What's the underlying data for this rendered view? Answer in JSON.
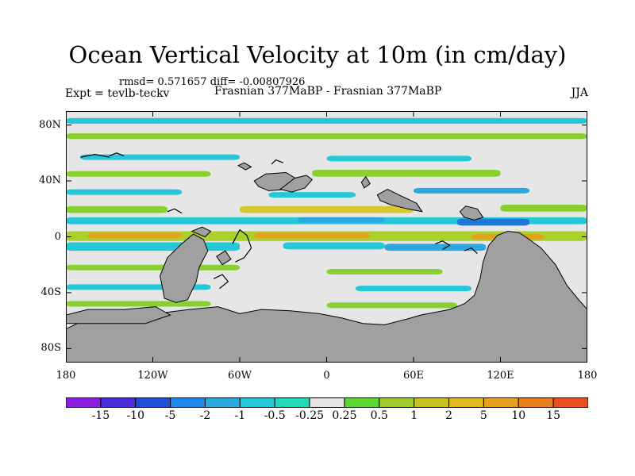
{
  "title": "Ocean Vertical Velocity at 10m (in cm/day)",
  "stats_line": "rmsd= 0.571657 diff= -0.00807926",
  "left_subtitle": "Expt = tevlb-teckv",
  "center_subtitle": "Frasnian 377MaBP - Frasnian 377MaBP",
  "right_subtitle": "JJA",
  "map": {
    "projection": "cylindrical equidistant",
    "lon_range": [
      -180,
      180
    ],
    "lat_range": [
      -90,
      90
    ],
    "lat_ticks": [
      {
        "value": 80,
        "label": "80N"
      },
      {
        "value": 40,
        "label": "40N"
      },
      {
        "value": 0,
        "label": "0"
      },
      {
        "value": -40,
        "label": "40S"
      },
      {
        "value": -80,
        "label": "80S"
      }
    ],
    "lon_ticks": [
      {
        "value": -180,
        "label": "180"
      },
      {
        "value": -120,
        "label": "120W"
      },
      {
        "value": -60,
        "label": "60W"
      },
      {
        "value": 0,
        "label": "0"
      },
      {
        "value": 60,
        "label": "60E"
      },
      {
        "value": 120,
        "label": "120E"
      },
      {
        "value": 180,
        "label": "180"
      }
    ],
    "ocean_background_color": "#e6e6e6",
    "land_color": "#a0a0a0",
    "field_bands": [
      {
        "lon": [
          -180,
          180
        ],
        "lat": [
          -3,
          4
        ],
        "color": "#aad02a"
      },
      {
        "lon": [
          -165,
          -100
        ],
        "lat": [
          -1,
          3
        ],
        "color": "#e8a020"
      },
      {
        "lon": [
          -50,
          30
        ],
        "lat": [
          -1,
          3
        ],
        "color": "#e8a020"
      },
      {
        "lon": [
          100,
          150
        ],
        "lat": [
          -2,
          2
        ],
        "color": "#e8a020"
      },
      {
        "lon": [
          -180,
          -60
        ],
        "lat": [
          -10,
          -4
        ],
        "color": "#26c8d8"
      },
      {
        "lon": [
          -30,
          40
        ],
        "lat": [
          -9,
          -4
        ],
        "color": "#26c8d8"
      },
      {
        "lon": [
          40,
          110
        ],
        "lat": [
          -10,
          -5
        ],
        "color": "#2aa8e0"
      },
      {
        "lon": [
          -180,
          180
        ],
        "lat": [
          9,
          14
        ],
        "color": "#26c8d8"
      },
      {
        "lon": [
          -20,
          40
        ],
        "lat": [
          10,
          14
        ],
        "color": "#2aa8e0"
      },
      {
        "lon": [
          90,
          140
        ],
        "lat": [
          8,
          13
        ],
        "color": "#1e78d8"
      },
      {
        "lon": [
          -180,
          -110
        ],
        "lat": [
          17,
          22
        ],
        "color": "#88d030"
      },
      {
        "lon": [
          -60,
          60
        ],
        "lat": [
          17,
          22
        ],
        "color": "#d8c830"
      },
      {
        "lon": [
          120,
          180
        ],
        "lat": [
          18,
          23
        ],
        "color": "#88d030"
      },
      {
        "lon": [
          -180,
          -100
        ],
        "lat": [
          30,
          34
        ],
        "color": "#26c8d8"
      },
      {
        "lon": [
          -40,
          20
        ],
        "lat": [
          28,
          32
        ],
        "color": "#26c8d8"
      },
      {
        "lon": [
          60,
          140
        ],
        "lat": [
          31,
          35
        ],
        "color": "#2aa8e0"
      },
      {
        "lon": [
          -180,
          -80
        ],
        "lat": [
          43,
          47
        ],
        "color": "#88d030"
      },
      {
        "lon": [
          -10,
          120
        ],
        "lat": [
          43,
          48
        ],
        "color": "#88d030"
      },
      {
        "lon": [
          -170,
          -60
        ],
        "lat": [
          55,
          59
        ],
        "color": "#26c8d8"
      },
      {
        "lon": [
          0,
          100
        ],
        "lat": [
          54,
          58
        ],
        "color": "#26c8d8"
      },
      {
        "lon": [
          -180,
          180
        ],
        "lat": [
          70,
          74
        ],
        "color": "#88d030"
      },
      {
        "lon": [
          -180,
          180
        ],
        "lat": [
          81,
          85
        ],
        "color": "#26c8d8"
      },
      {
        "lon": [
          -180,
          -60
        ],
        "lat": [
          -24,
          -20
        ],
        "color": "#88d030"
      },
      {
        "lon": [
          0,
          80
        ],
        "lat": [
          -27,
          -23
        ],
        "color": "#88d030"
      },
      {
        "lon": [
          -180,
          -80
        ],
        "lat": [
          -38,
          -34
        ],
        "color": "#26c8d8"
      },
      {
        "lon": [
          20,
          100
        ],
        "lat": [
          -39,
          -35
        ],
        "color": "#26c8d8"
      },
      {
        "lon": [
          -180,
          -80
        ],
        "lat": [
          -50,
          -46
        ],
        "color": "#88d030"
      },
      {
        "lon": [
          0,
          90
        ],
        "lat": [
          -51,
          -47
        ],
        "color": "#88d030"
      }
    ],
    "land_polygons": [
      {
        "name": "south-america-gondwana",
        "points": [
          [
            -113,
            -38
          ],
          [
            -115,
            -28
          ],
          [
            -110,
            -15
          ],
          [
            -100,
            -5
          ],
          [
            -92,
            2
          ],
          [
            -85,
            -2
          ],
          [
            -82,
            -10
          ],
          [
            -88,
            -22
          ],
          [
            -90,
            -32
          ],
          [
            -96,
            -45
          ],
          [
            -104,
            -47
          ],
          [
            -112,
            -44
          ]
        ]
      },
      {
        "name": "south-gondwana-landmass",
        "points": [
          [
            -180,
            -66
          ],
          [
            -160,
            -56
          ],
          [
            -140,
            -58
          ],
          [
            -110,
            -54
          ],
          [
            -95,
            -52
          ],
          [
            -75,
            -50
          ],
          [
            -60,
            -55
          ],
          [
            -45,
            -52
          ],
          [
            -25,
            -53
          ],
          [
            -5,
            -55
          ],
          [
            10,
            -58
          ],
          [
            25,
            -62
          ],
          [
            40,
            -63
          ],
          [
            55,
            -59
          ],
          [
            65,
            -56
          ],
          [
            75,
            -54
          ],
          [
            85,
            -52
          ],
          [
            95,
            -48
          ],
          [
            102,
            -42
          ],
          [
            106,
            -30
          ],
          [
            108,
            -18
          ],
          [
            112,
            -6
          ],
          [
            118,
            1
          ],
          [
            125,
            4
          ],
          [
            133,
            3
          ],
          [
            140,
            -2
          ],
          [
            148,
            -8
          ],
          [
            158,
            -20
          ],
          [
            166,
            -35
          ],
          [
            174,
            -45
          ],
          [
            180,
            -52
          ],
          [
            180,
            -90
          ],
          [
            -180,
            -90
          ]
        ]
      },
      {
        "name": "sw-landmass",
        "points": [
          [
            -180,
            -56
          ],
          [
            -165,
            -52
          ],
          [
            -140,
            -52
          ],
          [
            -118,
            -50
          ],
          [
            -108,
            -56
          ],
          [
            -125,
            -62
          ],
          [
            -150,
            -62
          ],
          [
            -180,
            -62
          ]
        ]
      },
      {
        "name": "north-island-a",
        "points": [
          [
            -50,
            40
          ],
          [
            -42,
            45
          ],
          [
            -28,
            46
          ],
          [
            -20,
            41
          ],
          [
            -27,
            34
          ],
          [
            -40,
            33
          ],
          [
            -47,
            36
          ]
        ]
      },
      {
        "name": "north-island-b",
        "points": [
          [
            -32,
            34
          ],
          [
            -24,
            32
          ],
          [
            -15,
            35
          ],
          [
            -10,
            41
          ],
          [
            -14,
            44
          ],
          [
            -22,
            42
          ]
        ]
      },
      {
        "name": "north-island-c",
        "points": [
          [
            -61,
            51
          ],
          [
            -57,
            53
          ],
          [
            -52,
            50
          ],
          [
            -56,
            48
          ]
        ]
      },
      {
        "name": "north-island-d",
        "points": [
          [
            24,
            39
          ],
          [
            27,
            43
          ],
          [
            30,
            38
          ],
          [
            26,
            35
          ]
        ]
      },
      {
        "name": "north-island-e",
        "points": [
          [
            35,
            30
          ],
          [
            42,
            34
          ],
          [
            50,
            30
          ],
          [
            62,
            24
          ],
          [
            66,
            18
          ],
          [
            56,
            20
          ],
          [
            44,
            23
          ],
          [
            37,
            26
          ]
        ]
      },
      {
        "name": "north-island-f",
        "points": [
          [
            92,
            18
          ],
          [
            96,
            22
          ],
          [
            104,
            20
          ],
          [
            108,
            14
          ],
          [
            102,
            12
          ],
          [
            95,
            14
          ]
        ]
      },
      {
        "name": "equatorial-island-a",
        "points": [
          [
            -93,
            4
          ],
          [
            -86,
            7
          ],
          [
            -80,
            4
          ],
          [
            -84,
            0
          ]
        ]
      },
      {
        "name": "equatorial-island-b",
        "points": [
          [
            -76,
            -14
          ],
          [
            -70,
            -10
          ],
          [
            -66,
            -16
          ],
          [
            -72,
            -20
          ]
        ]
      }
    ],
    "coast_lines": [
      {
        "points": [
          [
            -65,
            -5
          ],
          [
            -60,
            5
          ],
          [
            -55,
            1
          ],
          [
            -52,
            -8
          ],
          [
            -57,
            -15
          ],
          [
            -63,
            -18
          ]
        ]
      },
      {
        "points": [
          [
            -78,
            -30
          ],
          [
            -72,
            -27
          ],
          [
            -68,
            -32
          ],
          [
            -74,
            -37
          ]
        ]
      },
      {
        "points": [
          [
            -38,
            52
          ],
          [
            -35,
            55
          ],
          [
            -30,
            53
          ]
        ]
      },
      {
        "points": [
          [
            -150,
            58
          ],
          [
            -145,
            60
          ],
          [
            -140,
            58
          ]
        ]
      },
      {
        "points": [
          [
            75,
            -5
          ],
          [
            80,
            -3
          ],
          [
            85,
            -6
          ],
          [
            80,
            -9
          ]
        ]
      },
      {
        "points": [
          [
            95,
            -10
          ],
          [
            100,
            -8
          ],
          [
            104,
            -12
          ]
        ]
      },
      {
        "points": [
          [
            -110,
            18
          ],
          [
            -105,
            20
          ],
          [
            -100,
            17
          ]
        ]
      },
      {
        "points": [
          [
            -170,
            57
          ],
          [
            -160,
            59
          ],
          [
            -150,
            57
          ]
        ]
      }
    ]
  },
  "colorbar": {
    "colors": [
      "#8a1fe0",
      "#4a2cd8",
      "#2050d8",
      "#1e88e8",
      "#2aa8e0",
      "#26c8d8",
      "#22d8b8",
      "#e6e6e6",
      "#5ad830",
      "#a0cc30",
      "#c8c020",
      "#e0b820",
      "#e8a020",
      "#e88020",
      "#e85020"
    ],
    "labels": [
      "-15",
      "-10",
      "-5",
      "-2",
      "-1",
      "-0.5",
      "-0.25",
      "0.25",
      "0.5",
      "1",
      "2",
      "5",
      "10",
      "15"
    ]
  }
}
